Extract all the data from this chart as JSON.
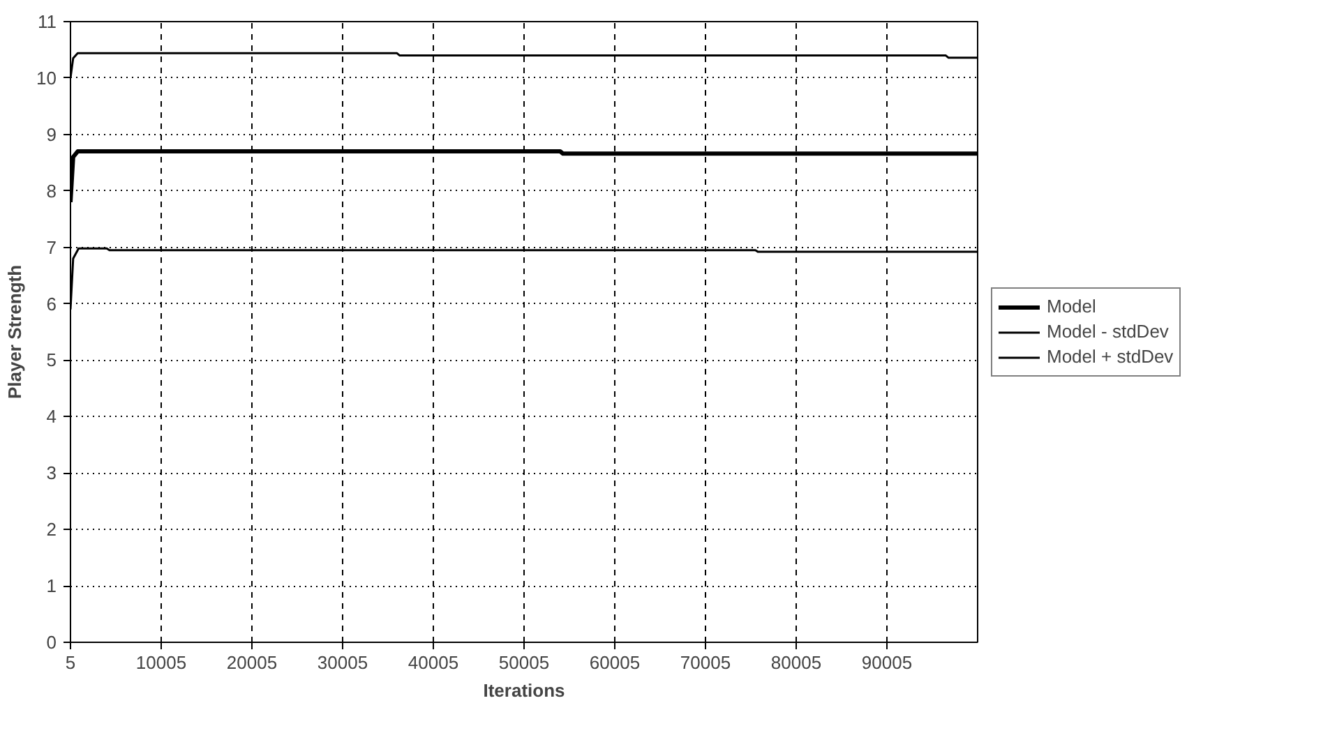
{
  "chart_data": {
    "type": "line",
    "xlabel": "Iterations",
    "ylabel": "Player Strength",
    "xlim": [
      5,
      100005
    ],
    "xticks": [
      5,
      10005,
      20005,
      30005,
      40005,
      50005,
      60005,
      70005,
      80005,
      90005
    ],
    "ylim": [
      0,
      11
    ],
    "yticks": [
      0,
      1,
      2,
      3,
      4,
      5,
      6,
      7,
      8,
      9,
      10,
      11
    ],
    "grid": true,
    "legend": "right",
    "marker": "none",
    "series": [
      {
        "name": "Model",
        "color": "#000000",
        "x": [
          5,
          300,
          800,
          54000,
          54300,
          100005
        ],
        "values": [
          7.8,
          8.6,
          8.7,
          8.7,
          8.66,
          8.66
        ]
      },
      {
        "name": "Model - stdDev",
        "color": "#000000",
        "x": [
          5,
          300,
          900,
          4000,
          4300,
          75500,
          75800,
          100005
        ],
        "values": [
          5.9,
          6.8,
          6.98,
          6.98,
          6.95,
          6.95,
          6.92,
          6.92
        ]
      },
      {
        "name": "Model + stdDev",
        "color": "#000000",
        "x": [
          5,
          300,
          800,
          36000,
          36300,
          96500,
          96800,
          100005
        ],
        "values": [
          10.0,
          10.35,
          10.44,
          10.44,
          10.4,
          10.4,
          10.36,
          10.36
        ]
      }
    ]
  }
}
